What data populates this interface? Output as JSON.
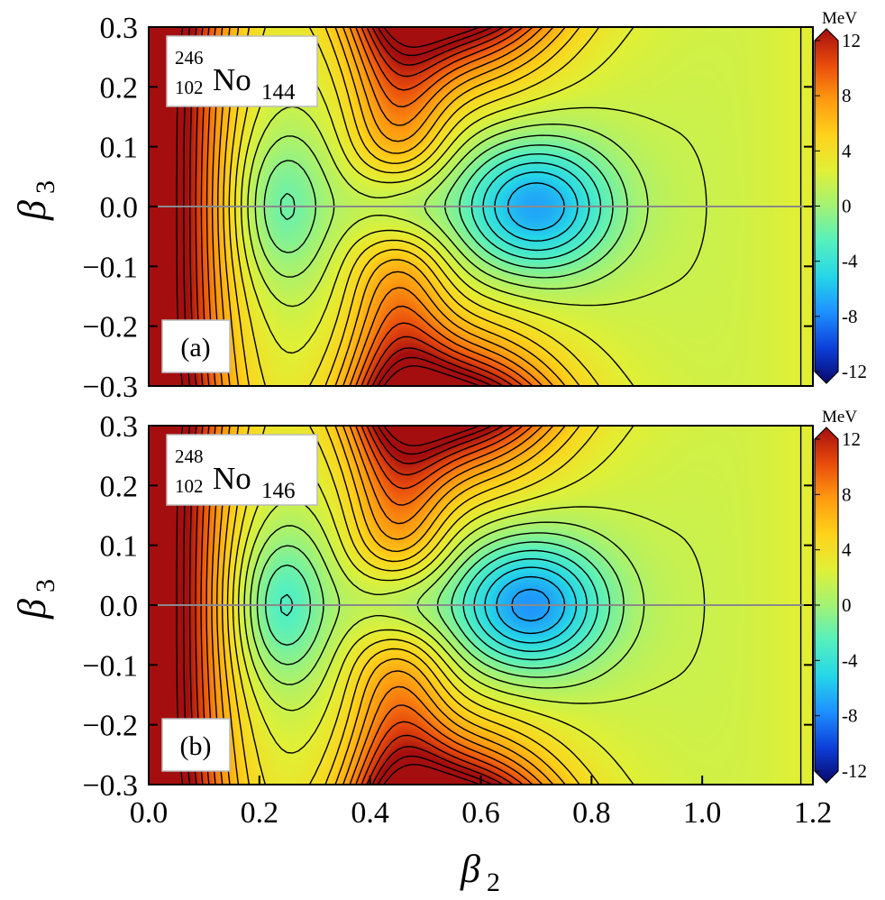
{
  "chart_data": [
    {
      "type": "heatmap",
      "panel_label": "(a)",
      "nucleus": {
        "mass_number": "246",
        "atomic_number": "102",
        "element": "No",
        "neutron_number": "144"
      },
      "xlim": [
        0.0,
        1.2
      ],
      "ylim": [
        -0.3,
        0.3
      ],
      "ylabel": "β",
      "ylabel_sub": "3",
      "yticks": [
        "0.3",
        "0.2",
        "0.1",
        "0.0",
        "−0.1",
        "−0.2",
        "−0.3"
      ],
      "ytick_values": [
        0.3,
        0.2,
        0.1,
        0.0,
        -0.1,
        -0.2,
        -0.3
      ],
      "minima": [
        {
          "beta2": 0.24,
          "beta3": 0.0,
          "energy_MeV": -3.5
        },
        {
          "beta2": 0.7,
          "beta3": 0.0,
          "energy_MeV": -8.0
        }
      ],
      "contour_interval_MeV": 1.0,
      "colorbar": {
        "unit": "MeV",
        "range": [
          -12,
          12
        ],
        "ticks": [
          "12",
          "8",
          "4",
          "0",
          "-4",
          "-8",
          "-12"
        ]
      }
    },
    {
      "type": "heatmap",
      "panel_label": "(b)",
      "nucleus": {
        "mass_number": "248",
        "atomic_number": "102",
        "element": "No",
        "neutron_number": "146"
      },
      "xlim": [
        0.0,
        1.2
      ],
      "ylim": [
        -0.3,
        0.3
      ],
      "xlabel": "β",
      "xlabel_sub": "2",
      "ylabel": "β",
      "ylabel_sub": "3",
      "xticks": [
        "0.0",
        "0.2",
        "0.4",
        "0.6",
        "0.8",
        "1.0",
        "1.2"
      ],
      "xtick_values": [
        0.0,
        0.2,
        0.4,
        0.6,
        0.8,
        1.0,
        1.2
      ],
      "yticks": [
        "0.3",
        "0.2",
        "0.1",
        "0.0",
        "−0.1",
        "−0.2",
        "−0.3"
      ],
      "ytick_values": [
        0.3,
        0.2,
        0.1,
        0.0,
        -0.1,
        -0.2,
        -0.3
      ],
      "minima": [
        {
          "beta2": 0.24,
          "beta3": 0.0,
          "energy_MeV": -4.5
        },
        {
          "beta2": 0.69,
          "beta3": 0.0,
          "energy_MeV": -8.5
        }
      ],
      "contour_interval_MeV": 1.0,
      "colorbar": {
        "unit": "MeV",
        "range": [
          -12,
          12
        ],
        "ticks": [
          "12",
          "8",
          "4",
          "0",
          "-4",
          "-8",
          "-12"
        ]
      }
    }
  ],
  "colormap": [
    "#08086b",
    "#0d3fd9",
    "#1e90ff",
    "#25d6e8",
    "#55f0bf",
    "#a3f275",
    "#e0f036",
    "#ffd21a",
    "#ff9a10",
    "#e84a0c",
    "#a50e0e"
  ]
}
